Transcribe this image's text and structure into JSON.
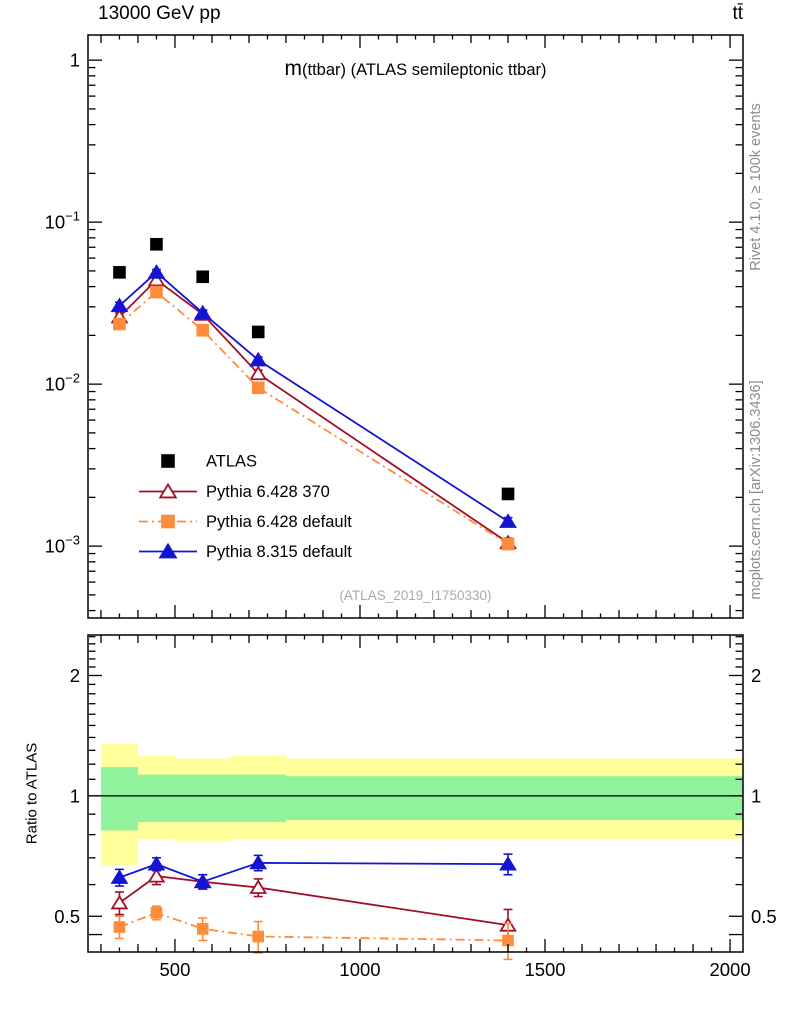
{
  "header": {
    "left_title": "13000 GeV pp",
    "right_title": "tt̄"
  },
  "side_notes": {
    "top": "Rivet 4.1.0, ≥ 100k events",
    "bottom": "mcplots.cern.ch [arXiv:1306.3436]"
  },
  "main_title": {
    "prefix": "m",
    "rest": "(ttbar) (ATLAS semileptonic ttbar)"
  },
  "watermark": "(ATLAS_2019_I1750330)",
  "colors": {
    "atlas": "#000000",
    "pythia6_370": "#a00f28",
    "pythia6_default": "#ff8c3a",
    "pythia8_default": "#1414d2",
    "band_outer": "#ffff9c",
    "band_inner": "#90f39b",
    "frame": "#000000",
    "note_gray": "#8c8c8c",
    "watermark_gray": "#aaaaaa"
  },
  "chart_data": {
    "type": "line",
    "title": "m(ttbar) (ATLAS semileptonic ttbar)",
    "xlabel": "",
    "ylabel": "",
    "xlim": [
      265,
      2035
    ],
    "x_tick_values": [
      500,
      1000,
      1500,
      2000
    ],
    "x_tick_labels": [
      "500",
      "1000",
      "1500",
      "2000"
    ],
    "x_minor_step": 50,
    "x_medium_step": 100,
    "x_major_step": 500,
    "bin_edges": [
      300,
      400,
      500,
      650,
      800,
      2000
    ],
    "x": [
      350,
      450,
      575,
      725,
      1400
    ],
    "main_panel": {
      "scale": "log",
      "ylim": [
        0.00036,
        1.43
      ],
      "decade_exponents": [
        0,
        -1,
        -2,
        -3
      ]
    },
    "ratio_panel": {
      "scale": "log",
      "ylim": [
        0.407,
        2.525
      ],
      "ytick_values": [
        0.5,
        1,
        2
      ],
      "ytick_labels": [
        "0.5",
        "1",
        "2"
      ],
      "ylabel": "Ratio to ATLAS",
      "reference": 1,
      "bands": {
        "edges": [
          300,
          400,
          500,
          650,
          800,
          2000
        ],
        "yellow": [
          [
            0.67,
            1.35
          ],
          [
            0.78,
            1.26
          ],
          [
            0.77,
            1.24
          ],
          [
            0.78,
            1.26
          ],
          [
            0.78,
            1.24
          ]
        ],
        "green": [
          [
            0.82,
            1.18
          ],
          [
            0.86,
            1.13
          ],
          [
            0.86,
            1.13
          ],
          [
            0.86,
            1.13
          ],
          [
            0.87,
            1.12
          ]
        ]
      }
    },
    "series": [
      {
        "name": "ATLAS",
        "marker": "square",
        "fill": "filled",
        "color": "#000000",
        "line": "none",
        "values": [
          0.049,
          0.073,
          0.046,
          0.021,
          0.0021
        ],
        "errors": [
          0.002,
          0.003,
          0.002,
          0.001,
          0.0001
        ]
      },
      {
        "name": "Pythia 6.428 370",
        "marker": "triangle",
        "fill": "open",
        "color": "#a00f28",
        "line": "solid",
        "values": [
          0.026,
          0.044,
          0.027,
          0.0116,
          0.00105
        ],
        "errors": [
          0.0015,
          0.002,
          0.0012,
          0.0006,
          7e-05
        ],
        "ratio": [
          0.54,
          0.63,
          0.61,
          0.59,
          0.475
        ],
        "ratio_errors": [
          0.035,
          0.03,
          0.025,
          0.03,
          0.045
        ]
      },
      {
        "name": "Pythia 6.428 default",
        "marker": "square",
        "fill": "filled",
        "color": "#ff8c3a",
        "line": "dashdot",
        "values": [
          0.0235,
          0.037,
          0.0215,
          0.0095,
          0.00103
        ],
        "errors": [
          0.0013,
          0.0018,
          0.0011,
          0.0006,
          7e-05
        ],
        "ratio": [
          0.47,
          0.51,
          0.465,
          0.445,
          0.435
        ],
        "ratio_errors": [
          0.03,
          0.02,
          0.03,
          0.04,
          0.045
        ]
      },
      {
        "name": "Pythia 8.315 default",
        "marker": "triangle",
        "fill": "filled",
        "color": "#1414d2",
        "line": "solid",
        "values": [
          0.0305,
          0.049,
          0.0275,
          0.0141,
          0.00142
        ],
        "errors": [
          0.0015,
          0.002,
          0.0012,
          0.0006,
          8e-05
        ],
        "ratio": [
          0.625,
          0.675,
          0.61,
          0.68,
          0.675
        ],
        "ratio_errors": [
          0.03,
          0.025,
          0.025,
          0.03,
          0.04
        ]
      }
    ],
    "legend_position": "lower-left-of-main-panel",
    "grid": false
  }
}
